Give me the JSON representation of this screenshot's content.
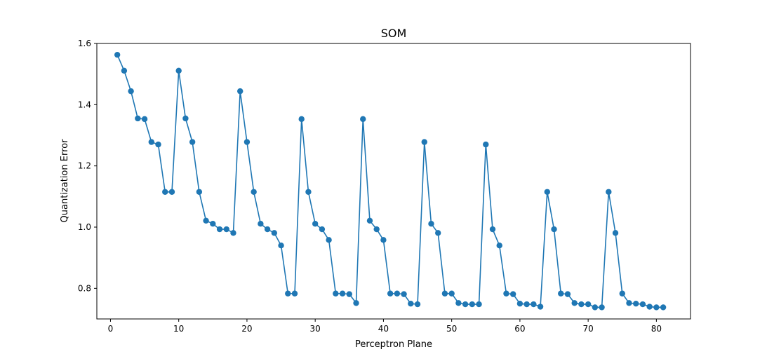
{
  "chart_data": {
    "type": "line",
    "title": "SOM",
    "xlabel": "Perceptron Plane",
    "ylabel": "Quantization Error",
    "xlim": [
      -2.0,
      85.0
    ],
    "ylim": [
      0.7,
      1.6
    ],
    "xticks": [
      0,
      10,
      20,
      30,
      40,
      50,
      60,
      70,
      80
    ],
    "yticks": [
      0.8,
      1.0,
      1.2,
      1.4,
      1.6
    ],
    "ytick_labels": [
      "0.8",
      "1.0",
      "1.2",
      "1.4",
      "1.6"
    ],
    "grid": false,
    "legend": false,
    "marker": "circle",
    "color": "#1f77b4",
    "series": [
      {
        "x": [
          1,
          2,
          3,
          4,
          5,
          6,
          7,
          8,
          9,
          10,
          11,
          12,
          13,
          14,
          15,
          16,
          17,
          18,
          19,
          20,
          21,
          22,
          23,
          24,
          25,
          26,
          27,
          28,
          29,
          30,
          31,
          32,
          33,
          34,
          35,
          36,
          37,
          38,
          39,
          40,
          41,
          42,
          43,
          44,
          45,
          46,
          47,
          48,
          49,
          50,
          51,
          52,
          53,
          54,
          55,
          56,
          57,
          58,
          59,
          60,
          61,
          62,
          63,
          64,
          65,
          66,
          67,
          68,
          69,
          70,
          71,
          72,
          73,
          74,
          75,
          76,
          77,
          78,
          79,
          80,
          81
        ],
        "values": [
          1.563,
          1.511,
          1.444,
          1.355,
          1.353,
          1.278,
          1.27,
          1.115,
          1.115,
          1.511,
          1.355,
          1.278,
          1.115,
          1.021,
          1.011,
          0.993,
          0.993,
          0.981,
          1.444,
          1.278,
          1.115,
          1.011,
          0.993,
          0.981,
          0.94,
          0.783,
          0.783,
          1.353,
          1.115,
          1.011,
          0.993,
          0.958,
          0.783,
          0.783,
          0.781,
          0.752,
          1.353,
          1.021,
          0.993,
          0.958,
          0.783,
          0.783,
          0.781,
          0.75,
          0.748,
          1.278,
          1.011,
          0.981,
          0.783,
          0.783,
          0.752,
          0.748,
          0.748,
          0.748,
          1.27,
          0.993,
          0.94,
          0.783,
          0.781,
          0.75,
          0.748,
          0.748,
          0.74,
          1.115,
          0.993,
          0.783,
          0.781,
          0.752,
          0.748,
          0.748,
          0.738,
          0.738,
          1.115,
          0.981,
          0.783,
          0.752,
          0.75,
          0.748,
          0.74,
          0.738,
          0.738
        ]
      }
    ]
  }
}
